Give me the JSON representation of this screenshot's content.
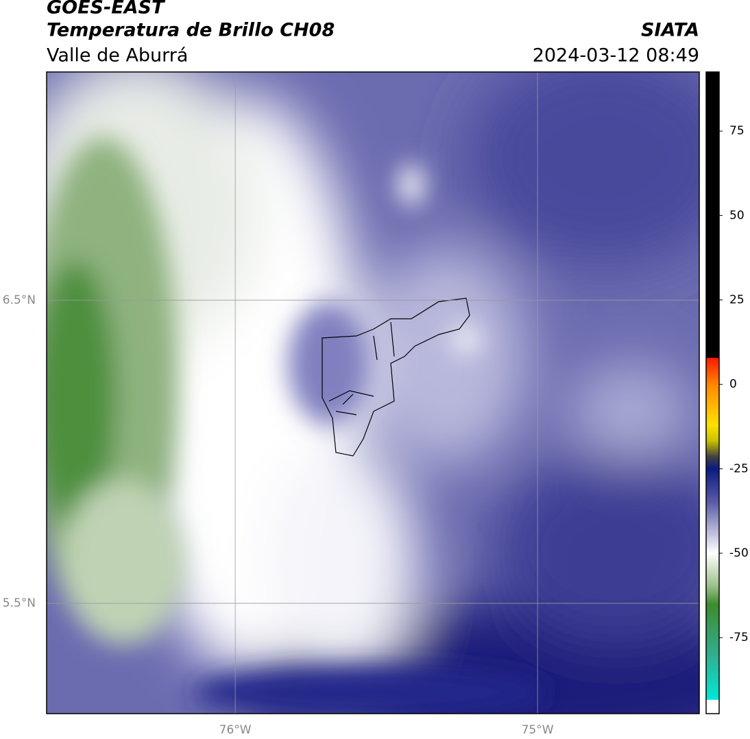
{
  "header": {
    "title": "GOES-EAST",
    "subtitle": "Temperatura de Brillo CH08",
    "region": "Valle de Aburrá",
    "source": "SIATA",
    "datetime": "2024-03-12 08:49"
  },
  "map": {
    "lon_range": [
      -76.624,
      -74.465
    ],
    "lat_range": [
      5.136,
      7.253
    ],
    "lon_ticks": [
      {
        "value": -76,
        "label": "76°W"
      },
      {
        "value": -75,
        "label": "75°W"
      }
    ],
    "lat_ticks": [
      {
        "value": 6.5,
        "label": "6.5°N"
      },
      {
        "value": 5.5,
        "label": "5.5°N"
      }
    ]
  },
  "colorbar": {
    "lim": [
      -97.5,
      92.5
    ],
    "ticks": [
      75,
      50,
      25,
      0,
      -25,
      -50,
      -75
    ]
  }
}
